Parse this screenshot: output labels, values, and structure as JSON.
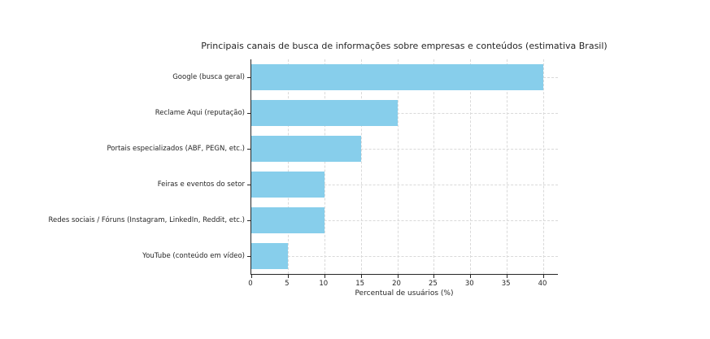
{
  "chart_data": {
    "type": "bar",
    "orientation": "horizontal",
    "title": "Principais canais de busca de informações sobre empresas e conteúdos (estimativa Brasil)",
    "categories": [
      "Google (busca geral)",
      "Reclame Aqui (reputação)",
      "Portais especializados (ABF, PEGN, etc.)",
      "Feiras e eventos do setor",
      "Redes sociais / Fóruns (Instagram, LinkedIn, Reddit, etc.)",
      "YouTube (conteúdo em vídeo)"
    ],
    "values": [
      40,
      20,
      15,
      10,
      10,
      5
    ],
    "xlabel": "Percentual de usuários (%)",
    "ylabel": "",
    "xlim": [
      0,
      42
    ],
    "xticks": [
      0,
      5,
      10,
      15,
      20,
      25,
      30,
      35,
      40
    ],
    "grid": true,
    "grid_style": "dashed",
    "legend": "none",
    "bar_color": "#87ceeb",
    "axis_color": "#262626",
    "grid_color": "#d9d9d9",
    "text_color": "#262626",
    "background": "#ffffff"
  }
}
